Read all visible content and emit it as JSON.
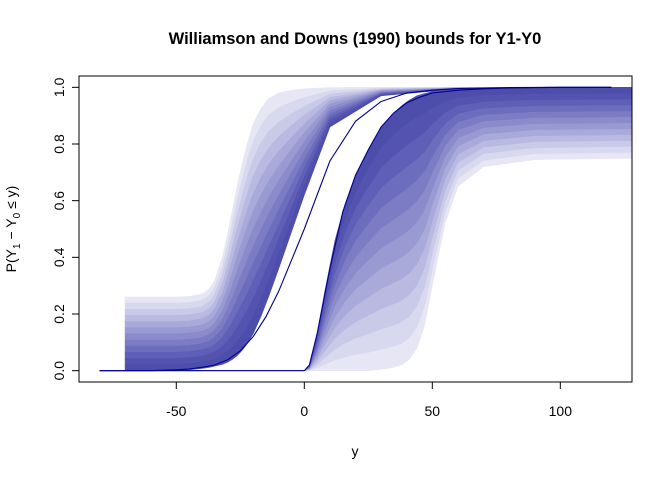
{
  "chart_data": {
    "type": "area",
    "title": "Williamson and Downs (1990) bounds for Y1-Y0",
    "xlabel": "y",
    "ylabel": {
      "prefix": "P(Y",
      "sub1": "1",
      "mid": " − Y",
      "sub2": "0",
      "suffix": " ≤ y)"
    },
    "xlim": [
      -88,
      128
    ],
    "ylim": [
      -0.04,
      1.04
    ],
    "x_ticks": [
      -50,
      0,
      50,
      100
    ],
    "x_tick_labels": [
      "-50",
      "0",
      "50",
      "100"
    ],
    "y_ticks": [
      0.0,
      0.2,
      0.4,
      0.6,
      0.8,
      1.0
    ],
    "y_tick_labels": [
      "0.0",
      "0.2",
      "0.4",
      "0.6",
      "0.8",
      "1.0"
    ],
    "band_colors": [
      "#e6e6f5",
      "#d8d8ef",
      "#c9c9e8",
      "#b9b9e1",
      "#a9a9da",
      "#9a9ad3",
      "#8b8bcc",
      "#7c7cc4",
      "#6d6dbe",
      "#5f5fb7",
      "#5454b0",
      "#4d4dab"
    ],
    "line_color": "#00008b",
    "lower_bound_center": {
      "x": [
        -80,
        -70,
        -60,
        -50,
        -45,
        -40,
        -35,
        -30,
        -25,
        -20,
        -15,
        -10,
        -5,
        0,
        5,
        10,
        20,
        30,
        40,
        50,
        60,
        80,
        100,
        120
      ],
      "y": [
        0.0,
        0.0,
        0.0,
        0.003,
        0.006,
        0.012,
        0.02,
        0.038,
        0.07,
        0.12,
        0.19,
        0.28,
        0.39,
        0.5,
        0.62,
        0.74,
        0.88,
        0.95,
        0.98,
        0.99,
        0.996,
        0.999,
        1.0,
        1.0
      ]
    },
    "upper_bound_center": {
      "x": [
        -80,
        -50,
        -20,
        -10,
        0,
        2,
        5,
        10,
        15,
        20,
        25,
        30,
        35,
        40,
        45,
        50,
        60,
        70,
        80,
        100,
        120
      ],
      "y": [
        0.0,
        0.0,
        0.0,
        0.0,
        0.0,
        0.02,
        0.13,
        0.36,
        0.56,
        0.69,
        0.78,
        0.86,
        0.91,
        0.945,
        0.965,
        0.98,
        0.99,
        0.995,
        0.998,
        1.0,
        1.0
      ]
    },
    "lower_bound_bands": {
      "x": [
        -70,
        -50,
        -45,
        -40,
        -37,
        -35,
        -32,
        -30,
        -28,
        -26,
        -24,
        -22,
        -20,
        -17,
        -14,
        -10,
        -5,
        0,
        10,
        30,
        60,
        128
      ],
      "outer_y": [
        0.26,
        0.26,
        0.262,
        0.27,
        0.29,
        0.32,
        0.4,
        0.48,
        0.57,
        0.66,
        0.74,
        0.81,
        0.87,
        0.925,
        0.96,
        0.98,
        0.99,
        0.995,
        0.999,
        1.0,
        1.0,
        1.0
      ],
      "inner_y": [
        0.0,
        0.0,
        0.003,
        0.008,
        0.012,
        0.016,
        0.022,
        0.03,
        0.04,
        0.055,
        0.075,
        0.1,
        0.13,
        0.19,
        0.26,
        0.36,
        0.49,
        0.62,
        0.86,
        0.97,
        0.995,
        1.0
      ]
    },
    "upper_bound_bands": {
      "x": [
        -70,
        -20,
        0,
        2,
        5,
        8,
        12,
        16,
        20,
        25,
        30,
        34,
        38,
        41,
        44,
        47,
        50,
        55,
        60,
        70,
        90,
        128
      ],
      "outer_y": [
        0.0,
        0.0,
        0.0,
        0.0,
        0.0,
        0.0,
        0.0,
        0.0,
        0.0,
        0.0,
        0.005,
        0.01,
        0.02,
        0.04,
        0.08,
        0.16,
        0.3,
        0.52,
        0.65,
        0.72,
        0.745,
        0.75
      ],
      "inner_y": [
        0.0,
        0.0,
        0.0,
        0.02,
        0.13,
        0.28,
        0.46,
        0.59,
        0.69,
        0.78,
        0.86,
        0.9,
        0.935,
        0.955,
        0.97,
        0.978,
        0.985,
        0.99,
        0.993,
        0.996,
        0.999,
        1.0
      ]
    }
  }
}
